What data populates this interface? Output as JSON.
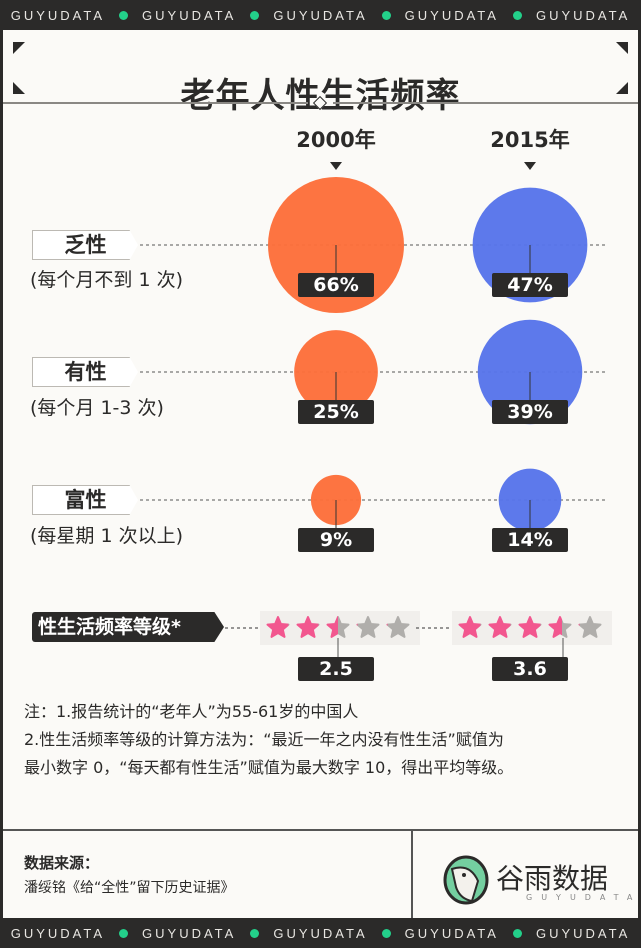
{
  "brand_bar": {
    "text": "GUYUDATA",
    "repeat": 5,
    "dot_color": "#23d08a"
  },
  "title": "老年人性生活频率",
  "years": [
    "2000年",
    "2015年"
  ],
  "colors": {
    "2000年": "#fd6f3b",
    "2015年": "#5875ea",
    "star_on": "#f2578f",
    "star_off": "#b0aeab"
  },
  "rows": [
    {
      "label": "乏性",
      "sub": "(每个月不到 1 次)",
      "values": [
        "66%",
        "47%"
      ]
    },
    {
      "label": "有性",
      "sub": "(每个月 1-3 次)",
      "values": [
        "25%",
        "39%"
      ]
    },
    {
      "label": "富性",
      "sub": "(每星期 1 次以上)",
      "values": [
        "9%",
        "14%"
      ]
    }
  ],
  "rating": {
    "label": "性生活频率等级*",
    "values": [
      "2.5",
      "3.6"
    ],
    "max_stars": 5
  },
  "chart_data": {
    "type": "bubble",
    "categories": [
      "乏性",
      "有性",
      "富性"
    ],
    "series": [
      {
        "name": "2000年",
        "values": [
          66,
          25,
          9
        ],
        "rating": 2.5
      },
      {
        "name": "2015年",
        "values": [
          47,
          39,
          14
        ],
        "rating": 3.6
      }
    ],
    "unit": "%"
  },
  "notes": [
    "注：1.报告统计的“老年人”为55-61岁的中国人",
    "2.性生活频率等级的计算方法为：“最近一年之内没有性生活”赋值为",
    "最小数字 0，“每天都有性生活”赋值为最大数字 10，得出平均等级。"
  ],
  "source": {
    "label": "数据来源：",
    "text": "潘绥铭《给“全性”留下历史证据》"
  },
  "logo": {
    "name": "谷雨数据",
    "sub": "GUYUDATA"
  }
}
